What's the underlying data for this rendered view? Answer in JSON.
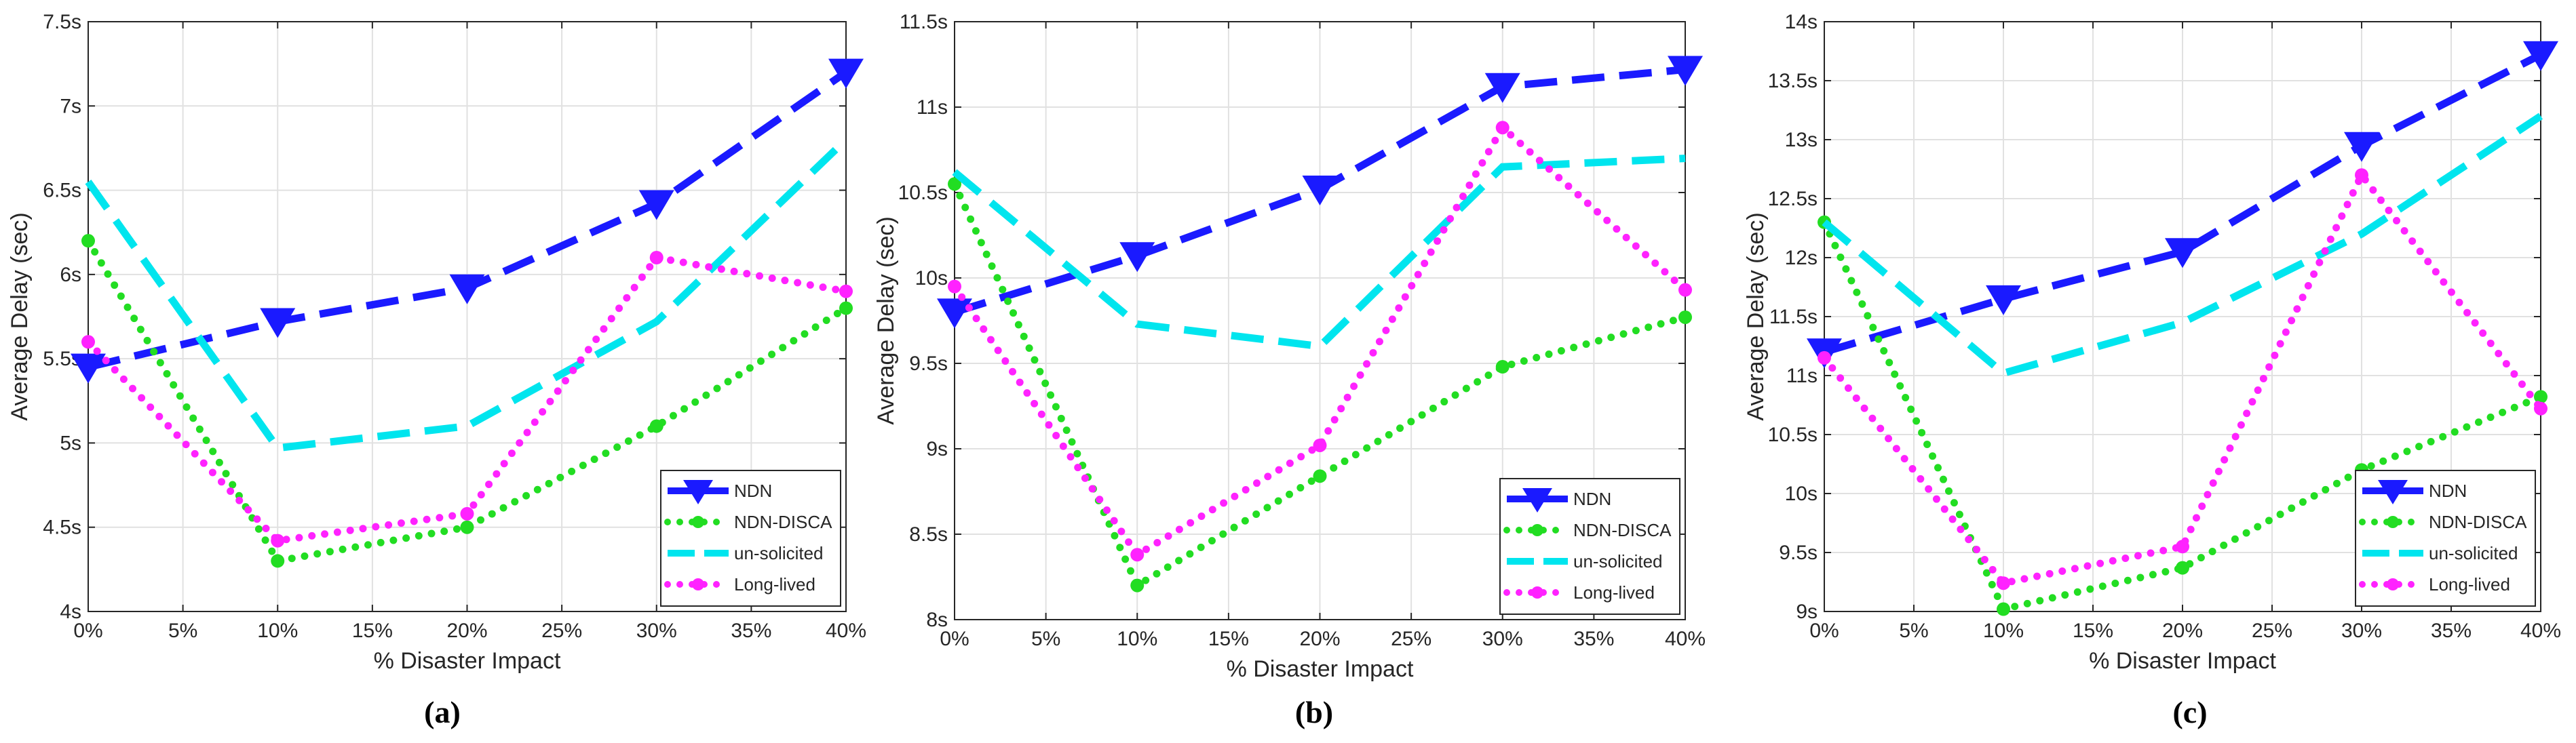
{
  "chart_data": [
    {
      "id": "a",
      "type": "line",
      "caption": "(a)",
      "xlabel": "% Disaster Impact",
      "ylabel": "Average Delay (sec)",
      "categories": [
        "0%",
        "5%",
        "10%",
        "15%",
        "20%",
        "25%",
        "30%",
        "35%",
        "40%"
      ],
      "x": [
        0,
        10,
        20,
        30,
        40
      ],
      "ylim": [
        4,
        7.5
      ],
      "yticks": [
        4,
        4.5,
        5,
        5.5,
        6,
        6.5,
        7,
        7.5
      ],
      "ytick_labels": [
        "4s",
        "4.5s",
        "5s",
        "5.5s",
        "6s",
        "6.5s",
        "7s",
        "7.5s"
      ],
      "grid": true,
      "legend_position": "bottom-right",
      "series": [
        {
          "name": "NDN",
          "values": [
            5.45,
            5.72,
            5.92,
            6.42,
            7.2
          ],
          "color": "#1a1aff",
          "style": "dash",
          "marker": "triangle-down"
        },
        {
          "name": "NDN-DISCA",
          "values": [
            6.2,
            4.3,
            4.5,
            5.1,
            5.8
          ],
          "color": "#22dd22",
          "style": "dot",
          "marker": "circle"
        },
        {
          "name": "un-solicited",
          "values": [
            6.55,
            4.97,
            5.1,
            5.72,
            6.8
          ],
          "color": "#00e5ee",
          "style": "dash",
          "marker": "none"
        },
        {
          "name": "Long-lived",
          "values": [
            5.6,
            4.42,
            4.58,
            6.1,
            5.9
          ],
          "color": "#ff22ff",
          "style": "dot",
          "marker": "circle"
        }
      ]
    },
    {
      "id": "b",
      "type": "line",
      "caption": "(b)",
      "xlabel": "% Disaster Impact",
      "ylabel": "Average Delay (sec)",
      "categories": [
        "0%",
        "5%",
        "10%",
        "15%",
        "20%",
        "25%",
        "30%",
        "35%",
        "40%"
      ],
      "x": [
        0,
        10,
        20,
        30,
        40
      ],
      "ylim": [
        8,
        11.5
      ],
      "yticks": [
        8,
        8.5,
        9,
        9.5,
        10,
        10.5,
        11,
        11.5
      ],
      "ytick_labels": [
        "8s",
        "8.5s",
        "9s",
        "9.5s",
        "10s",
        "10.5s",
        "11s",
        "11.5s"
      ],
      "grid": true,
      "legend_position": "bottom-right",
      "series": [
        {
          "name": "NDN",
          "values": [
            9.8,
            10.13,
            10.52,
            11.12,
            11.22
          ],
          "color": "#1a1aff",
          "style": "dash",
          "marker": "triangle-down"
        },
        {
          "name": "NDN-DISCA",
          "values": [
            10.55,
            8.2,
            8.84,
            9.48,
            9.77
          ],
          "color": "#22dd22",
          "style": "dot",
          "marker": "circle"
        },
        {
          "name": "un-solicited",
          "values": [
            10.62,
            9.73,
            9.6,
            10.65,
            10.7
          ],
          "color": "#00e5ee",
          "style": "dash",
          "marker": "none"
        },
        {
          "name": "Long-lived",
          "values": [
            9.95,
            8.38,
            9.02,
            10.88,
            9.93
          ],
          "color": "#ff22ff",
          "style": "dot",
          "marker": "circle"
        }
      ]
    },
    {
      "id": "c",
      "type": "line",
      "caption": "(c)",
      "xlabel": "% Disaster Impact",
      "ylabel": "Average Delay (sec)",
      "categories": [
        "0%",
        "5%",
        "10%",
        "15%",
        "20%",
        "25%",
        "30%",
        "35%",
        "40%"
      ],
      "x": [
        0,
        10,
        20,
        30,
        40
      ],
      "ylim": [
        9,
        14
      ],
      "yticks": [
        9,
        9.5,
        10,
        10.5,
        11,
        11.5,
        12,
        12.5,
        13,
        13.5,
        14
      ],
      "ytick_labels": [
        "9s",
        "9.5s",
        "10s",
        "10.5s",
        "11s",
        "11.5s",
        "12s",
        "12.5s",
        "13s",
        "13.5s",
        "14s"
      ],
      "grid": true,
      "legend_position": "bottom-right",
      "series": [
        {
          "name": "NDN",
          "values": [
            11.2,
            11.65,
            12.05,
            12.95,
            13.72
          ],
          "color": "#1a1aff",
          "style": "dash",
          "marker": "triangle-down"
        },
        {
          "name": "NDN-DISCA",
          "values": [
            12.3,
            9.02,
            9.37,
            10.2,
            10.82
          ],
          "color": "#22dd22",
          "style": "dot",
          "marker": "circle"
        },
        {
          "name": "un-solicited",
          "values": [
            12.3,
            11.02,
            11.45,
            12.2,
            13.2
          ],
          "color": "#00e5ee",
          "style": "dash",
          "marker": "none"
        },
        {
          "name": "Long-lived",
          "values": [
            11.15,
            9.24,
            9.55,
            12.7,
            10.72
          ],
          "color": "#ff22ff",
          "style": "dot",
          "marker": "circle"
        }
      ]
    }
  ]
}
